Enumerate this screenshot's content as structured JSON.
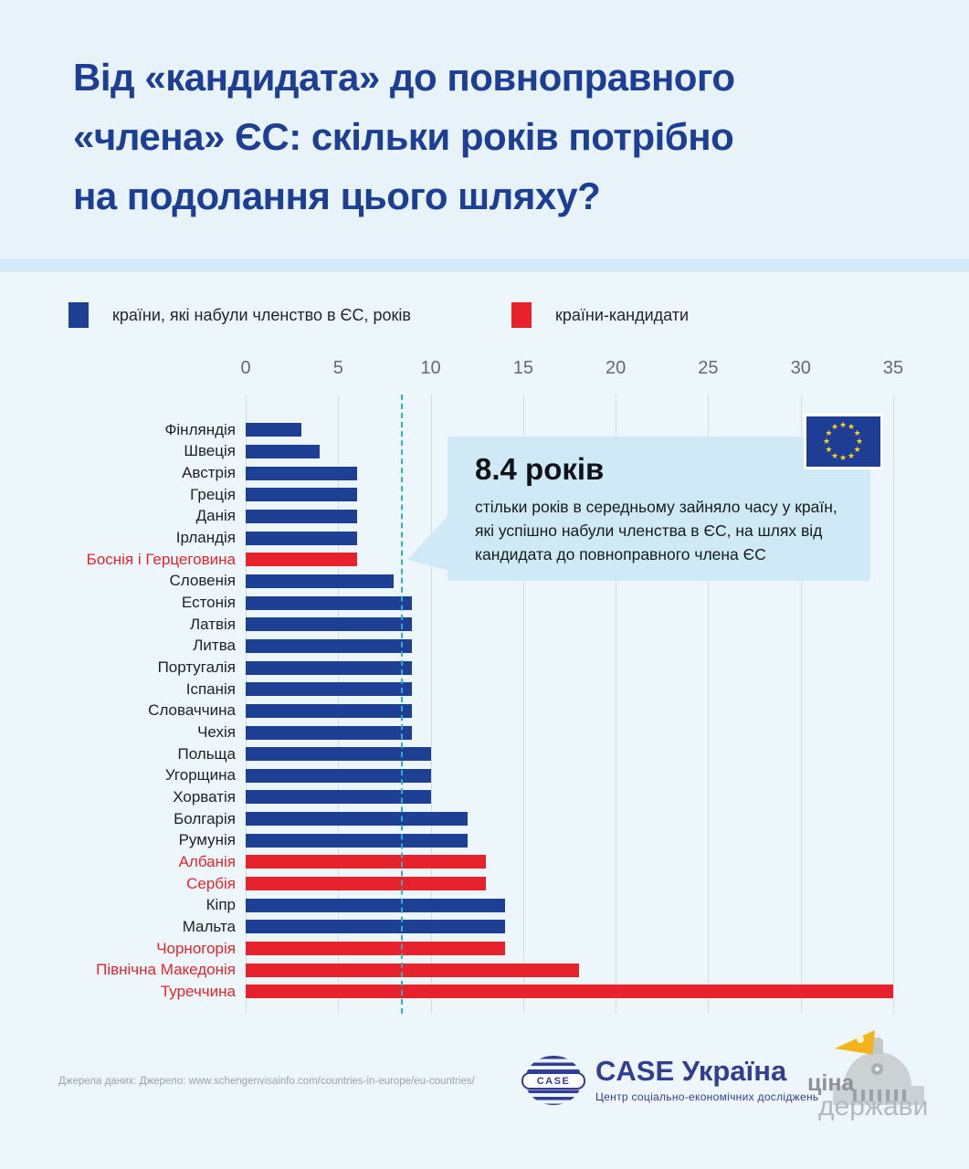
{
  "title_lines": [
    "Від «кандидата» до повноправного",
    "«члена» ЄС: скільки років потрібно",
    "на подолання цього шляху?"
  ],
  "chart_data": {
    "type": "bar",
    "orientation": "horizontal",
    "xlim": [
      0,
      35
    ],
    "xticks": [
      0,
      5,
      10,
      15,
      20,
      25,
      30,
      35
    ],
    "grid": true,
    "average_line": {
      "value": 8.4,
      "style": "dashed",
      "color": "#2fb0c4"
    },
    "groups": {
      "member": {
        "legend": "країни, які набули членство в ЄС, років",
        "color": "#1e4094",
        "label_color": "#1d2124"
      },
      "candidate": {
        "legend": "країни-кандидати",
        "color": "#e8222d",
        "label_color": "#e0262c"
      }
    },
    "bars": [
      {
        "label": "Фінляндія",
        "value": 3,
        "group": "member"
      },
      {
        "label": "Швеція",
        "value": 4,
        "group": "member"
      },
      {
        "label": "Австрія",
        "value": 6,
        "group": "member"
      },
      {
        "label": "Греція",
        "value": 6,
        "group": "member"
      },
      {
        "label": "Данія",
        "value": 6,
        "group": "member"
      },
      {
        "label": "Ірландія",
        "value": 6,
        "group": "member"
      },
      {
        "label": "Боснія і Герцеговина",
        "value": 6,
        "group": "candidate"
      },
      {
        "label": "Словенія",
        "value": 8,
        "group": "member"
      },
      {
        "label": "Естонія",
        "value": 9,
        "group": "member"
      },
      {
        "label": "Латвія",
        "value": 9,
        "group": "member"
      },
      {
        "label": "Литва",
        "value": 9,
        "group": "member"
      },
      {
        "label": "Португалія",
        "value": 9,
        "group": "member"
      },
      {
        "label": "Іспанія",
        "value": 9,
        "group": "member"
      },
      {
        "label": "Словаччина",
        "value": 9,
        "group": "member"
      },
      {
        "label": "Чехія",
        "value": 9,
        "group": "member"
      },
      {
        "label": "Польща",
        "value": 10,
        "group": "member"
      },
      {
        "label": "Угорщина",
        "value": 10,
        "group": "member"
      },
      {
        "label": "Хорватія",
        "value": 10,
        "group": "member"
      },
      {
        "label": "Болгарія",
        "value": 12,
        "group": "member"
      },
      {
        "label": "Румунія",
        "value": 12,
        "group": "member"
      },
      {
        "label": "Албанія",
        "value": 13,
        "group": "candidate"
      },
      {
        "label": "Сербія",
        "value": 13,
        "group": "candidate"
      },
      {
        "label": "Кіпр",
        "value": 14,
        "group": "member"
      },
      {
        "label": "Мальта",
        "value": 14,
        "group": "member"
      },
      {
        "label": "Чорногорія",
        "value": 14,
        "group": "candidate"
      },
      {
        "label": "Північна Македонія",
        "value": 18,
        "group": "candidate"
      },
      {
        "label": "Туреччина",
        "value": 35,
        "group": "candidate"
      }
    ]
  },
  "callout": {
    "title": "8.4 років",
    "body": "стільки років в середньому зайняло часу у країн, які успішно набули членства в ЄС, на шлях від кандидата до повноправного члена ЄС"
  },
  "eu_flag": {
    "background": "#1e3d94",
    "star_color": "#ffd617",
    "stars": 12
  },
  "footer": {
    "source": "Джерела даних: Джерело: www.schengenvisainfo.com/countries-in-europe/eu-countries/",
    "case": {
      "badge": "CASE",
      "name": "CASE Україна",
      "subtitle": "Центр соціально-економічних досліджень"
    },
    "price": {
      "word1": "ціна",
      "word2": "держави"
    }
  }
}
